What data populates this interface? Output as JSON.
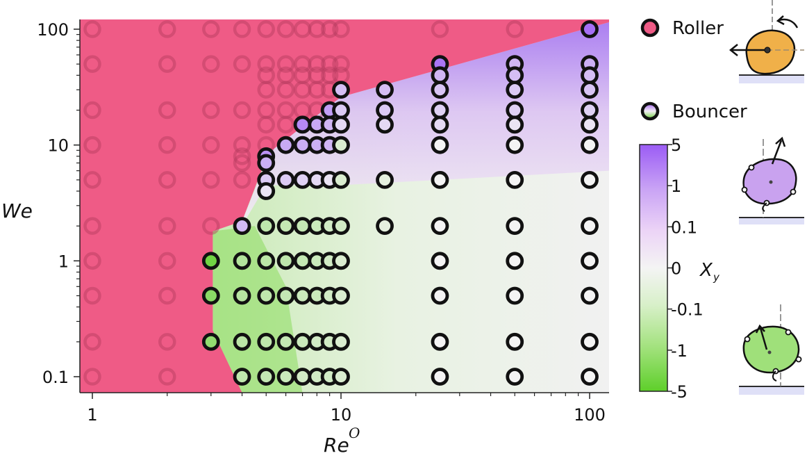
{
  "chart_data": {
    "type": "scatter",
    "xlabel": "Re",
    "xlabel_superscript": "O",
    "ylabel": "We",
    "xscale": "log",
    "yscale": "log",
    "xlim": [
      0.95,
      120
    ],
    "ylim": [
      0.072,
      120
    ],
    "x_ticks": [
      1,
      10,
      100
    ],
    "x_tick_labels": [
      "1",
      "10",
      "100"
    ],
    "y_ticks": [
      0.1,
      1,
      10,
      100
    ],
    "y_tick_labels": [
      "0.1",
      "1",
      "10",
      "100"
    ],
    "legend": [
      {
        "name": "Roller",
        "color": "#e85a82"
      },
      {
        "name": "Bouncer",
        "colors": [
          "#a86af2",
          "#6fd33a"
        ]
      }
    ],
    "colorbar": {
      "label": "X",
      "label_subscript": "y",
      "ticks": [
        "5",
        "1",
        "0.1",
        "0",
        "-0.1",
        "-1",
        "-5"
      ],
      "max_color": "#9b5cf5",
      "mid_color": "#f4f4f4",
      "min_color": "#5ecf2a"
    },
    "roller_region_color": "#ef5b86",
    "bouncer_markers": [
      {
        "Re": 3,
        "We": 1,
        "Xy": -3.0
      },
      {
        "Re": 3,
        "We": 0.5,
        "Xy": -1.5
      },
      {
        "Re": 3,
        "We": 0.2,
        "Xy": -1.2
      },
      {
        "Re": 4,
        "We": 2,
        "Xy": 0.35
      },
      {
        "Re": 4,
        "We": 1,
        "Xy": -0.45
      },
      {
        "Re": 4,
        "We": 0.5,
        "Xy": -0.4
      },
      {
        "Re": 4,
        "We": 0.2,
        "Xy": -0.35
      },
      {
        "Re": 4,
        "We": 0.1,
        "Xy": -0.3
      },
      {
        "Re": 5,
        "We": 8,
        "Xy": 1.2
      },
      {
        "Re": 5,
        "We": 7,
        "Xy": 0.5
      },
      {
        "Re": 5,
        "We": 5,
        "Xy": 0.2
      },
      {
        "Re": 5,
        "We": 4,
        "Xy": 0.05
      },
      {
        "Re": 5,
        "We": 2,
        "Xy": -0.3
      },
      {
        "Re": 5,
        "We": 1,
        "Xy": -0.35
      },
      {
        "Re": 5,
        "We": 0.5,
        "Xy": -0.3
      },
      {
        "Re": 5,
        "We": 0.2,
        "Xy": -0.3
      },
      {
        "Re": 5,
        "We": 0.1,
        "Xy": -0.25
      },
      {
        "Re": 6,
        "We": 10,
        "Xy": 0.6
      },
      {
        "Re": 6,
        "We": 5,
        "Xy": 0.2
      },
      {
        "Re": 6,
        "We": 2,
        "Xy": -0.25
      },
      {
        "Re": 6,
        "We": 1,
        "Xy": -0.3
      },
      {
        "Re": 6,
        "We": 0.5,
        "Xy": -0.25
      },
      {
        "Re": 6,
        "We": 0.2,
        "Xy": -0.25
      },
      {
        "Re": 6,
        "We": 0.1,
        "Xy": -0.2
      },
      {
        "Re": 7,
        "We": 15,
        "Xy": 1.5
      },
      {
        "Re": 7,
        "We": 10,
        "Xy": 0.5
      },
      {
        "Re": 7,
        "We": 5,
        "Xy": 0.15
      },
      {
        "Re": 7,
        "We": 2,
        "Xy": -0.25
      },
      {
        "Re": 7,
        "We": 1,
        "Xy": -0.25
      },
      {
        "Re": 7,
        "We": 0.5,
        "Xy": -0.2
      },
      {
        "Re": 7,
        "We": 0.2,
        "Xy": -0.2
      },
      {
        "Re": 7,
        "We": 0.1,
        "Xy": -0.15
      },
      {
        "Re": 8,
        "We": 15,
        "Xy": 0.6
      },
      {
        "Re": 8,
        "We": 10,
        "Xy": 0.5
      },
      {
        "Re": 8,
        "We": 5,
        "Xy": 0.1
      },
      {
        "Re": 8,
        "We": 2,
        "Xy": -0.2
      },
      {
        "Re": 8,
        "We": 1,
        "Xy": -0.2
      },
      {
        "Re": 8,
        "We": 0.5,
        "Xy": -0.2
      },
      {
        "Re": 8,
        "We": 0.2,
        "Xy": -0.15
      },
      {
        "Re": 8,
        "We": 0.1,
        "Xy": -0.15
      },
      {
        "Re": 9,
        "We": 20,
        "Xy": 0.8
      },
      {
        "Re": 9,
        "We": 15,
        "Xy": 0.4
      },
      {
        "Re": 9,
        "We": 10,
        "Xy": 0.4
      },
      {
        "Re": 9,
        "We": 5,
        "Xy": 0.05
      },
      {
        "Re": 9,
        "We": 2,
        "Xy": -0.15
      },
      {
        "Re": 9,
        "We": 1,
        "Xy": -0.15
      },
      {
        "Re": 9,
        "We": 0.5,
        "Xy": -0.15
      },
      {
        "Re": 9,
        "We": 0.2,
        "Xy": -0.15
      },
      {
        "Re": 9,
        "We": 0.1,
        "Xy": -0.15
      },
      {
        "Re": 10,
        "We": 30,
        "Xy": 0.3
      },
      {
        "Re": 10,
        "We": 20,
        "Xy": 0.2
      },
      {
        "Re": 10,
        "We": 15,
        "Xy": 0.1
      },
      {
        "Re": 10,
        "We": 10,
        "Xy": -0.1
      },
      {
        "Re": 10,
        "We": 5,
        "Xy": -0.1
      },
      {
        "Re": 10,
        "We": 2,
        "Xy": -0.15
      },
      {
        "Re": 10,
        "We": 1,
        "Xy": -0.1
      },
      {
        "Re": 10,
        "We": 0.5,
        "Xy": -0.1
      },
      {
        "Re": 10,
        "We": 0.2,
        "Xy": -0.1
      },
      {
        "Re": 10,
        "We": 0.1,
        "Xy": -0.1
      },
      {
        "Re": 15,
        "We": 30,
        "Xy": 0.3
      },
      {
        "Re": 15,
        "We": 20,
        "Xy": 0.2
      },
      {
        "Re": 15,
        "We": 15,
        "Xy": 0.1
      },
      {
        "Re": 15,
        "We": 5,
        "Xy": -0.05
      },
      {
        "Re": 15,
        "We": 2,
        "Xy": -0.05
      },
      {
        "Re": 25,
        "We": 50,
        "Xy": 2.5
      },
      {
        "Re": 25,
        "We": 40,
        "Xy": 0.4
      },
      {
        "Re": 25,
        "We": 30,
        "Xy": 0.25
      },
      {
        "Re": 25,
        "We": 20,
        "Xy": 0.15
      },
      {
        "Re": 25,
        "We": 15,
        "Xy": 0.1
      },
      {
        "Re": 25,
        "We": 10,
        "Xy": 0
      },
      {
        "Re": 25,
        "We": 5,
        "Xy": 0
      },
      {
        "Re": 25,
        "We": 2,
        "Xy": 0
      },
      {
        "Re": 25,
        "We": 1,
        "Xy": 0
      },
      {
        "Re": 25,
        "We": 0.5,
        "Xy": 0
      },
      {
        "Re": 25,
        "We": 0.2,
        "Xy": 0
      },
      {
        "Re": 25,
        "We": 0.1,
        "Xy": 0
      },
      {
        "Re": 50,
        "We": 50,
        "Xy": 0.4
      },
      {
        "Re": 50,
        "We": 40,
        "Xy": 0.3
      },
      {
        "Re": 50,
        "We": 30,
        "Xy": 0.2
      },
      {
        "Re": 50,
        "We": 20,
        "Xy": 0.15
      },
      {
        "Re": 50,
        "We": 15,
        "Xy": 0.05
      },
      {
        "Re": 50,
        "We": 10,
        "Xy": 0
      },
      {
        "Re": 50,
        "We": 5,
        "Xy": 0
      },
      {
        "Re": 50,
        "We": 2,
        "Xy": 0
      },
      {
        "Re": 50,
        "We": 1,
        "Xy": 0
      },
      {
        "Re": 50,
        "We": 0.5,
        "Xy": 0
      },
      {
        "Re": 50,
        "We": 0.2,
        "Xy": 0
      },
      {
        "Re": 50,
        "We": 0.1,
        "Xy": 0
      },
      {
        "Re": 100,
        "We": 100,
        "Xy": 3.0
      },
      {
        "Re": 100,
        "We": 50,
        "Xy": 0.5
      },
      {
        "Re": 100,
        "We": 40,
        "Xy": 0.3
      },
      {
        "Re": 100,
        "We": 30,
        "Xy": 0.25
      },
      {
        "Re": 100,
        "We": 20,
        "Xy": 0.15
      },
      {
        "Re": 100,
        "We": 15,
        "Xy": 0.05
      },
      {
        "Re": 100,
        "We": 10,
        "Xy": 0
      },
      {
        "Re": 100,
        "We": 5,
        "Xy": 0
      },
      {
        "Re": 100,
        "We": 2,
        "Xy": 0
      },
      {
        "Re": 100,
        "We": 1,
        "Xy": 0
      },
      {
        "Re": 100,
        "We": 0.5,
        "Xy": 0
      },
      {
        "Re": 100,
        "We": 0.2,
        "Xy": 0
      },
      {
        "Re": 100,
        "We": 0.1,
        "Xy": 0
      }
    ],
    "roller_markers": [
      {
        "Re": 1,
        "We": [
          100,
          50,
          20,
          10,
          5,
          2,
          1,
          0.5,
          0.2,
          0.1
        ]
      },
      {
        "Re": 2,
        "We": [
          100,
          50,
          20,
          10,
          5,
          2,
          1,
          0.5,
          0.2,
          0.1
        ]
      },
      {
        "Re": 3,
        "We": [
          100,
          50,
          20,
          10,
          5,
          2
        ]
      },
      {
        "Re": 4,
        "We": [
          100,
          50,
          20,
          10,
          8,
          7,
          5
        ]
      },
      {
        "Re": 5,
        "We": [
          100,
          50,
          40,
          30,
          20,
          15,
          10
        ]
      },
      {
        "Re": 6,
        "We": [
          100,
          50,
          40,
          30,
          20,
          15
        ]
      },
      {
        "Re": 7,
        "We": [
          100,
          50,
          40,
          30,
          20
        ]
      },
      {
        "Re": 8,
        "We": [
          100,
          50,
          40,
          30,
          20
        ]
      },
      {
        "Re": 9,
        "We": [
          100,
          50,
          40,
          30
        ]
      },
      {
        "Re": 10,
        "We": [
          100,
          50,
          40
        ]
      },
      {
        "Re": 25,
        "We": [
          100
        ]
      },
      {
        "Re": 50,
        "We": [
          100
        ]
      }
    ]
  }
}
